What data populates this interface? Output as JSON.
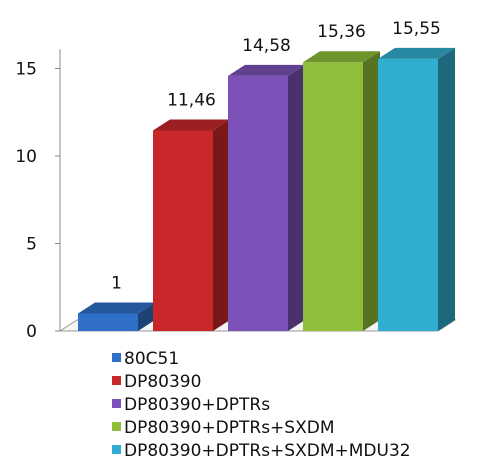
{
  "chart_data": {
    "type": "bar",
    "style": "3d",
    "categories": [
      "80C51",
      "DP80390",
      "DP80390+DPTRs",
      "DP80390+DPTRs+SXDM",
      "DP80390+DPTRs+SXDM+MDU32"
    ],
    "values": [
      1,
      11.46,
      14.58,
      15.36,
      15.55
    ],
    "data_labels": [
      "1",
      "11,46",
      "14,58",
      "15,36",
      "15,55"
    ],
    "yticks": [
      0,
      5,
      10,
      15
    ],
    "ylim": [
      0,
      17
    ],
    "title": "",
    "xlabel": "",
    "ylabel": "",
    "grid": false,
    "legend_position": "bottom",
    "colors": [
      "#2f6fc7",
      "#c8282a",
      "#7c52b8",
      "#8fbe3a",
      "#31aecf"
    ]
  }
}
